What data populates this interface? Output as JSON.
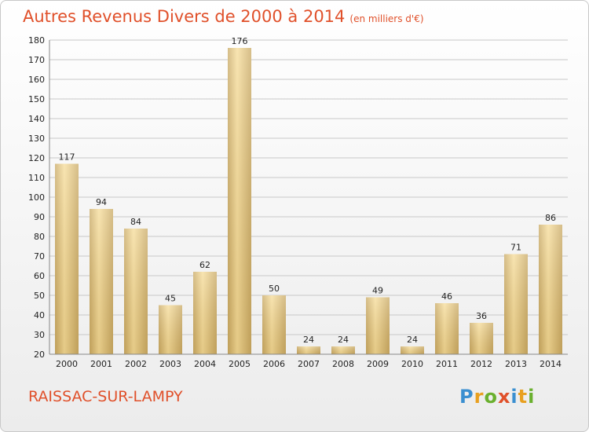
{
  "title": "Autres Revenus Divers de 2000 à 2014",
  "unit": "(en milliers d'€)",
  "commune": "RAISSAC-SUR-LAMPY",
  "logo": {
    "text": "Proxiti",
    "letters": [
      {
        "ch": "P",
        "color": "#3a8fd0"
      },
      {
        "ch": "r",
        "color": "#e8a020"
      },
      {
        "ch": "o",
        "color": "#6ab02e"
      },
      {
        "ch": "x",
        "color": "#e0502a"
      },
      {
        "ch": "i",
        "color": "#3a8fd0"
      },
      {
        "ch": "t",
        "color": "#e8a020"
      },
      {
        "ch": "i",
        "color": "#6ab02e"
      }
    ]
  },
  "colors": {
    "accent": "#e0502a",
    "bar_light": "#f6dc98",
    "bar_dark": "#c8a862",
    "grid": "#c8c8c8",
    "axis_text": "#222222"
  },
  "chart_data": {
    "type": "bar",
    "categories": [
      "2000",
      "2001",
      "2002",
      "2003",
      "2004",
      "2005",
      "2006",
      "2007",
      "2008",
      "2009",
      "2010",
      "2011",
      "2012",
      "2013",
      "2014"
    ],
    "values": [
      117,
      94,
      84,
      45,
      62,
      176,
      50,
      24,
      24,
      49,
      24,
      46,
      36,
      71,
      86
    ],
    "ylim": [
      20,
      180
    ],
    "yticks": [
      20,
      30,
      40,
      50,
      60,
      70,
      80,
      90,
      100,
      110,
      120,
      130,
      140,
      150,
      160,
      170,
      180
    ],
    "grid": "horizontal",
    "title": "Autres Revenus Divers de 2000 à 2014",
    "xlabel": "",
    "ylabel": ""
  }
}
